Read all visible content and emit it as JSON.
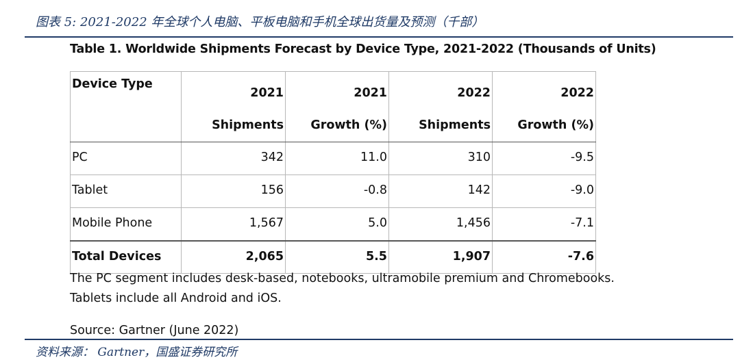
{
  "figure": {
    "title": "图表 5:  2021-2022 年全球个人电脑、平板电脑和手机全球出货量及预测（千部）",
    "source": "资料来源：  Gartner，国盛证券研究所"
  },
  "table": {
    "title": "Table 1. Worldwide Shipments Forecast by Device Type, 2021-2022 (Thousands of Units)",
    "headers": [
      {
        "line1": "Device Type",
        "line2": ""
      },
      {
        "line1": "2021",
        "line2": "Shipments"
      },
      {
        "line1": "2021",
        "line2": "Growth (%)"
      },
      {
        "line1": "2022",
        "line2": "Shipments"
      },
      {
        "line1": "2022",
        "line2": "Growth (%)"
      }
    ],
    "rows": [
      [
        "PC",
        "342",
        "11.0",
        "310",
        "-9.5"
      ],
      [
        "Tablet",
        "156",
        "-0.8",
        "142",
        "-9.0"
      ],
      [
        "Mobile Phone",
        "1,567",
        "5.0",
        "1,456",
        "-7.1"
      ]
    ],
    "total": [
      "Total Devices",
      "2,065",
      "5.5",
      "1,907",
      "-7.6"
    ]
  },
  "notes": {
    "line1": "The PC segment includes desk-based, notebooks, ultramobile premium and Chromebooks.",
    "line2": "Tablets include all Android and iOS.",
    "line3": "Source: Gartner (June 2022)"
  },
  "colors": {
    "accent": "#1f3a66",
    "text": "#111111",
    "grid": "#b7b7b7"
  }
}
